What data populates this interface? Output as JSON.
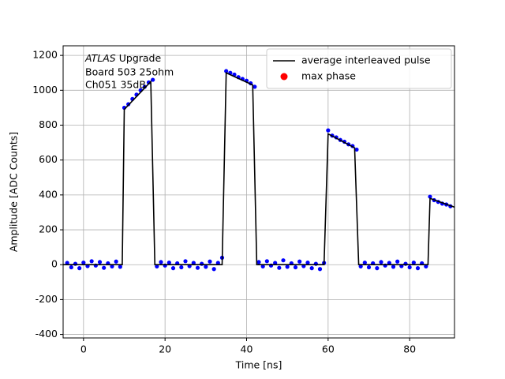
{
  "chart_data": {
    "type": "line",
    "x_label": "Time [ns]",
    "y_label": "Amplitude [ADC Counts]",
    "annotation": {
      "italic": "ATLAS",
      "lines": [
        "Upgrade",
        "Board 503 25ohm",
        "Ch051 35dB"
      ]
    },
    "xlim": [
      -5,
      91
    ],
    "ylim": [
      -420,
      1255
    ],
    "xticks": [
      0,
      20,
      40,
      60,
      80
    ],
    "yticks": [
      -400,
      -200,
      0,
      200,
      400,
      600,
      800,
      1000,
      1200
    ],
    "grid": true,
    "legend": "upper right",
    "series": [
      {
        "name": "average interleaved pulse",
        "color": "#000000",
        "style": "line",
        "x": [
          -5,
          9.5,
          10,
          16.5,
          17.5,
          34,
          35,
          41.5,
          42.5,
          59,
          60,
          66.5,
          67.5,
          84.5,
          85,
          91
        ],
        "values": [
          0,
          0,
          890,
          1050,
          0,
          0,
          1100,
          1030,
          0,
          0,
          750,
          670,
          0,
          0,
          380,
          330
        ]
      },
      {
        "color": "#0000ff",
        "style": "scatter",
        "x": [
          -4,
          -3,
          -2,
          -1,
          0,
          1,
          2,
          3,
          4,
          5,
          6,
          7,
          8,
          9,
          10,
          11,
          12,
          13,
          14,
          15,
          16,
          17,
          18,
          19,
          20,
          21,
          22,
          23,
          24,
          25,
          26,
          27,
          28,
          29,
          30,
          31,
          32,
          33,
          34,
          35,
          36,
          37,
          38,
          39,
          40,
          41,
          42,
          43,
          44,
          45,
          46,
          47,
          48,
          49,
          50,
          51,
          52,
          53,
          54,
          55,
          56,
          57,
          58,
          59,
          60,
          61,
          62,
          63,
          64,
          65,
          66,
          67,
          68,
          69,
          70,
          71,
          72,
          73,
          74,
          75,
          76,
          77,
          78,
          79,
          80,
          81,
          82,
          83,
          84,
          85,
          86,
          87,
          88,
          89,
          90
        ],
        "values": [
          10,
          -15,
          5,
          -20,
          12,
          -8,
          20,
          -5,
          15,
          -18,
          8,
          -10,
          18,
          -12,
          900,
          920,
          950,
          975,
          1000,
          1020,
          1045,
          1060,
          -10,
          15,
          -5,
          12,
          -20,
          8,
          -15,
          20,
          -8,
          10,
          -18,
          5,
          -12,
          18,
          -25,
          10,
          40,
          1110,
          1100,
          1090,
          1075,
          1065,
          1055,
          1040,
          1020,
          15,
          -10,
          20,
          -5,
          10,
          -18,
          25,
          -12,
          8,
          -15,
          18,
          -8,
          12,
          -20,
          5,
          -25,
          10,
          770,
          740,
          730,
          715,
          705,
          690,
          680,
          660,
          -10,
          12,
          -15,
          8,
          -20,
          15,
          -5,
          10,
          -12,
          18,
          -8,
          5,
          -15,
          12,
          -20,
          8,
          -10,
          390,
          370,
          360,
          350,
          345,
          335
        ]
      },
      {
        "name": "max phase",
        "color": "#ff0000",
        "style": "scatter",
        "x": [],
        "values": []
      }
    ]
  }
}
